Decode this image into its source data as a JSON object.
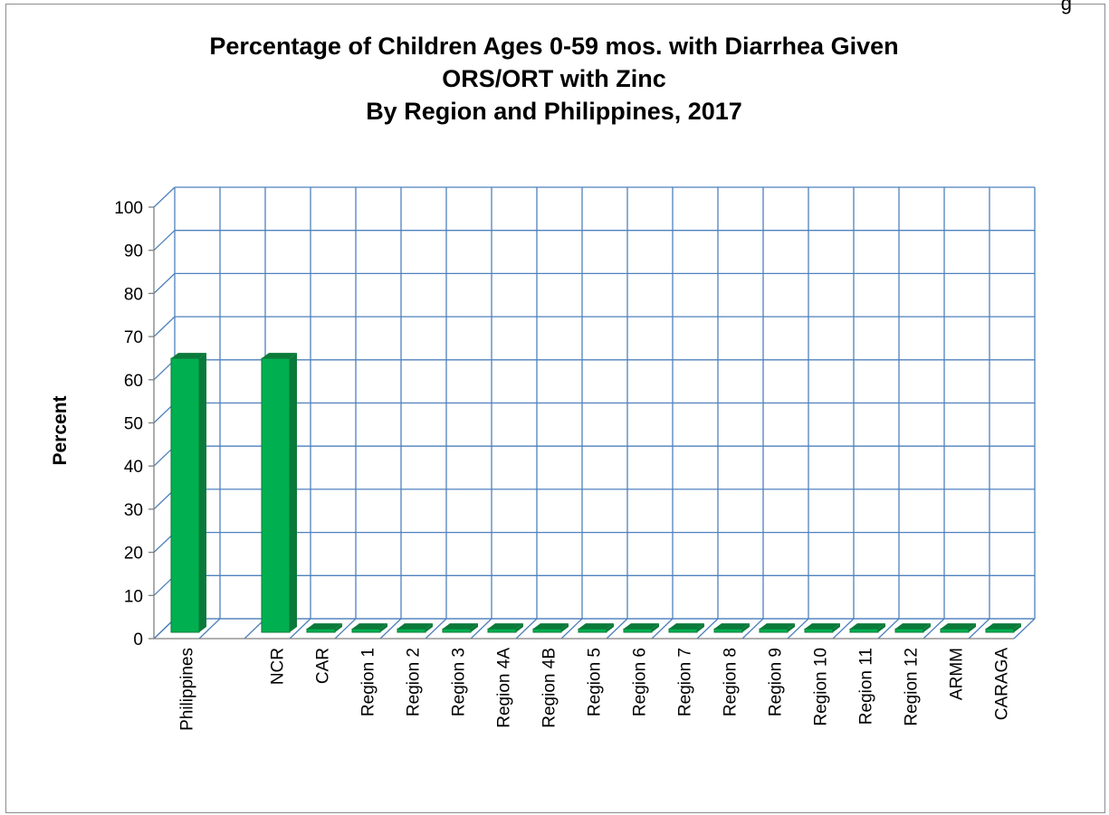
{
  "header_fragment": "g",
  "chart_data": {
    "type": "bar",
    "title_lines": [
      "Percentage of Children Ages 0-59 mos. with Diarrhea Given",
      "ORS/ORT with Zinc",
      "By Region and Philippines, 2017"
    ],
    "xlabel": "",
    "ylabel": "Percent",
    "ylim": [
      0,
      100
    ],
    "yticks": [
      0,
      10,
      20,
      30,
      40,
      50,
      60,
      70,
      80,
      90,
      100
    ],
    "grid": true,
    "legend": "none",
    "categories": [
      "Philippines",
      "",
      "NCR",
      "CAR",
      "Region 1",
      "Region 2",
      "Region 3",
      "Region 4A",
      "Region 4B",
      "Region 5",
      "Region 6",
      "Region 7",
      "Region 8",
      "Region 9",
      "Region 10",
      "Region 11",
      "Region 12",
      "ARMM",
      "CARAGA"
    ],
    "values": [
      63.5,
      null,
      63.5,
      0,
      0,
      0,
      0,
      0,
      0,
      0,
      0,
      0,
      0,
      0,
      0,
      0,
      0,
      0,
      0
    ],
    "bar_color": "#00B050",
    "bar_edge_color": "#0A7A3A"
  }
}
